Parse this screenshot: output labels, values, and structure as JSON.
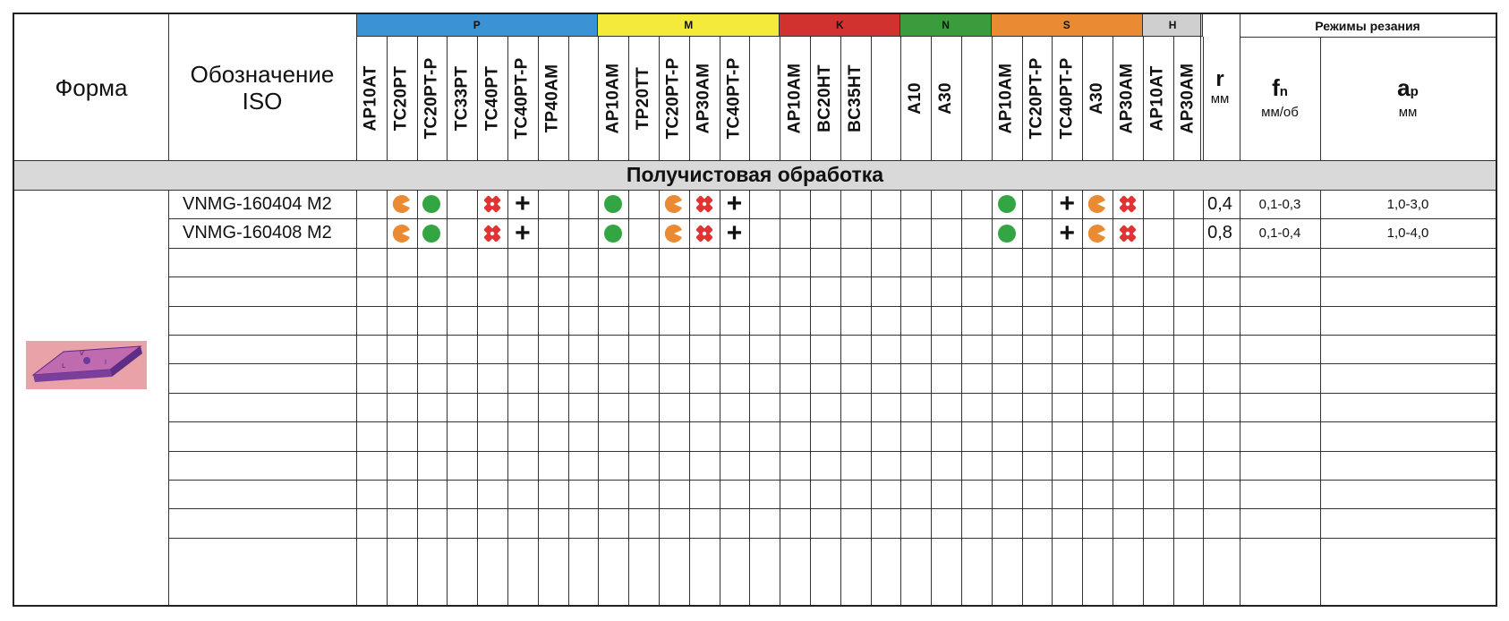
{
  "header": {
    "forma": "Форма",
    "iso_line1": "Обозначение",
    "iso_line2": "ISO",
    "r_label": "r",
    "r_unit": "мм",
    "cutting_title": "Режимы резания",
    "fn_label": "f",
    "fn_sub": "n",
    "fn_unit": "мм/об",
    "ap_label": "a",
    "ap_sub": "p",
    "ap_unit": "мм"
  },
  "groups": [
    {
      "label": "P",
      "color": "#3b93d6",
      "grades": [
        "AP10AT",
        "TC20PT",
        "TC20PT-P",
        "TC33PT",
        "TC40PT",
        "TC40PT-P",
        "TP40AM",
        ""
      ]
    },
    {
      "label": "M",
      "color": "#f4ea3c",
      "grades": [
        "AP10AM",
        "TP20TT",
        "TC20PT-P",
        "AP30AM",
        "TC40PT-P",
        ""
      ]
    },
    {
      "label": "K",
      "color": "#d1312f",
      "grades": [
        "AP10AM",
        "BC20HT",
        "BC35HT",
        ""
      ]
    },
    {
      "label": "N",
      "color": "#3a9c3d",
      "grades": [
        "A10",
        "A30",
        ""
      ]
    },
    {
      "label": "S",
      "color": "#ea8a33",
      "grades": [
        "AP10AM",
        "TC20PT-P",
        "TC40PT-P",
        "A30",
        "AP30AM"
      ]
    },
    {
      "label": "H",
      "color": "#cfcfcf",
      "grades": [
        "AP10AT",
        "AP30AM"
      ]
    }
  ],
  "section_title": "Получистовая обработка",
  "legend_colors": {
    "green": "#34a543",
    "orange": "#ea8a33",
    "red": "#e03434"
  },
  "rows": [
    {
      "designation": "VNMG-160404 M2",
      "marks": [
        "",
        "orange-c",
        "green-dot",
        "",
        "red-x",
        "plus",
        "",
        "",
        "green-dot",
        "",
        "orange-c",
        "red-x",
        "plus",
        "",
        "",
        "",
        "",
        "",
        "",
        "",
        "",
        "green-dot",
        "",
        "plus",
        "orange-c",
        "red-x",
        "",
        ""
      ],
      "r": "0,4",
      "fn": "0,1-0,3",
      "ap": "1,0-3,0"
    },
    {
      "designation": "VNMG-160408 M2",
      "marks": [
        "",
        "orange-c",
        "green-dot",
        "",
        "red-x",
        "plus",
        "",
        "",
        "green-dot",
        "",
        "orange-c",
        "red-x",
        "plus",
        "",
        "",
        "",
        "",
        "",
        "",
        "",
        "",
        "green-dot",
        "",
        "plus",
        "orange-c",
        "red-x",
        "",
        ""
      ],
      "r": "0,8",
      "fn": "0,1-0,4",
      "ap": "1,0-4,0"
    },
    {
      "designation": "",
      "marks": [],
      "r": "",
      "fn": "",
      "ap": ""
    },
    {
      "designation": "",
      "marks": [],
      "r": "",
      "fn": "",
      "ap": ""
    },
    {
      "designation": "",
      "marks": [],
      "r": "",
      "fn": "",
      "ap": ""
    },
    {
      "designation": "",
      "marks": [],
      "r": "",
      "fn": "",
      "ap": ""
    },
    {
      "designation": "",
      "marks": [],
      "r": "",
      "fn": "",
      "ap": ""
    },
    {
      "designation": "",
      "marks": [],
      "r": "",
      "fn": "",
      "ap": ""
    },
    {
      "designation": "",
      "marks": [],
      "r": "",
      "fn": "",
      "ap": ""
    },
    {
      "designation": "",
      "marks": [],
      "r": "",
      "fn": "",
      "ap": ""
    },
    {
      "designation": "",
      "marks": [],
      "r": "",
      "fn": "",
      "ap": ""
    },
    {
      "designation": "",
      "marks": [],
      "r": "",
      "fn": "",
      "ap": ""
    },
    {
      "designation": "",
      "marks": [],
      "r": "",
      "fn": "",
      "ap": ""
    }
  ],
  "insert_image": {
    "icon": "vnmg-insert-image",
    "background": "#e8a2a8",
    "body_color": "#8a4aa8"
  }
}
